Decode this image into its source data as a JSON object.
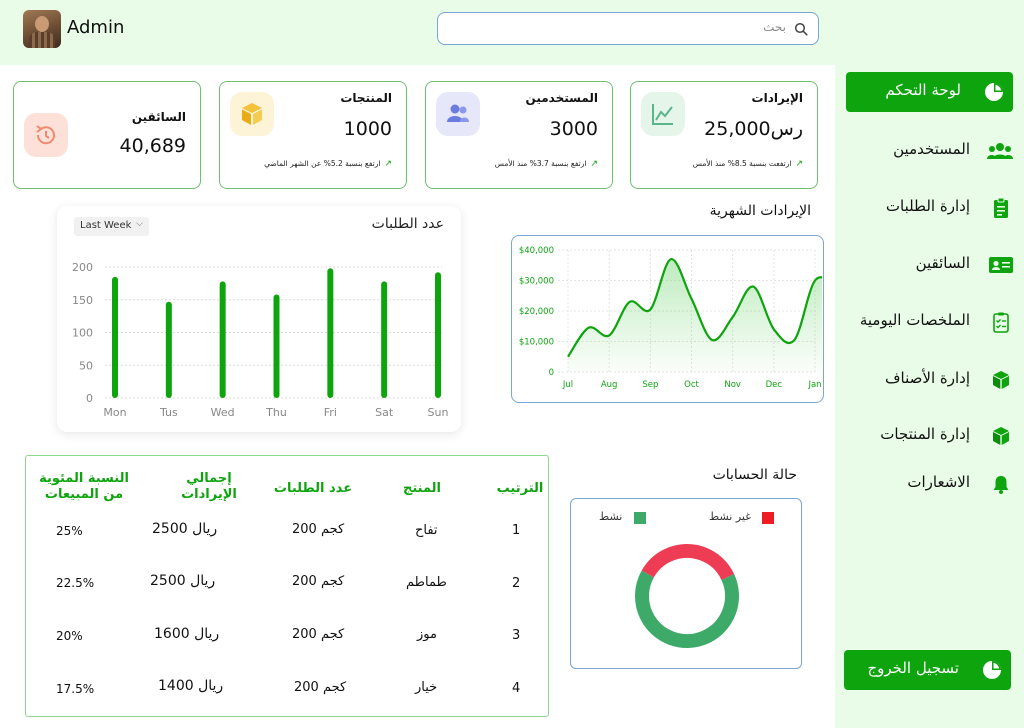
{
  "header": {
    "admin_name": "Admin",
    "search_placeholder": "بحث"
  },
  "sidebar": {
    "active": "لوحة التحكم",
    "items": [
      {
        "label": "المستخدمين",
        "icon": "users-icon"
      },
      {
        "label": "إدارة الطلبات",
        "icon": "clipboard-icon"
      },
      {
        "label": "السائقين",
        "icon": "id-card-icon"
      },
      {
        "label": "الملخصات اليومية",
        "icon": "checklist-icon"
      },
      {
        "label": "إدارة الأصناف",
        "icon": "box-icon"
      },
      {
        "label": "إدارة المنتجات",
        "icon": "box-icon"
      },
      {
        "label": "الاشعارات",
        "icon": "bell-icon"
      }
    ],
    "logout": "تسجيل الخروج"
  },
  "cards": {
    "revenue": {
      "title": "الإيرادات",
      "value": "25,000رس",
      "trend": "ارتفعت بنسبة 8.5% منذ الأمس",
      "icon": "chart-icon"
    },
    "users": {
      "title": "المستخدمين",
      "value": "3000",
      "trend": "ارتفع بنسبة 3.7% منذ الأمس",
      "icon": "users-icon"
    },
    "products": {
      "title": "المنتجات",
      "value": "1000",
      "trend": "ارتفع بنسبة 5.2% عن الشهر الماضي",
      "icon": "cube-icon"
    },
    "drivers": {
      "title": "السائقين",
      "value": "40,689",
      "icon": "history-icon"
    }
  },
  "orders_chart_panel": {
    "title": "عدد الطلبات",
    "period": "Last Week"
  },
  "revenue_chart_panel": {
    "title": "الإيرادات الشهرية"
  },
  "chart_data": [
    {
      "type": "bar",
      "title": "عدد الطلبات",
      "categories": [
        "Mon",
        "Tus",
        "Wed",
        "Thu",
        "Fri",
        "Sat",
        "Sun"
      ],
      "values": [
        185,
        147,
        178,
        158,
        198,
        178,
        192
      ],
      "ylim": [
        0,
        200
      ],
      "yticks": [
        0,
        50,
        100,
        150,
        200
      ],
      "color": "#0ea40e",
      "grid": true
    },
    {
      "type": "area",
      "title": "الإيرادات الشهرية",
      "categories": [
        "Jul",
        "Aug",
        "Sep",
        "Oct",
        "Nov",
        "Dec",
        "Jan"
      ],
      "x": [
        0,
        0.5,
        1,
        1.5,
        2,
        2.5,
        3,
        3.5,
        4,
        4.5,
        5,
        5.5,
        6,
        6.5
      ],
      "values": [
        5000,
        14500,
        12000,
        23000,
        20500,
        37000,
        24000,
        10500,
        18000,
        28000,
        14000,
        10500,
        30000,
        28500
      ],
      "ylim": [
        0,
        40000
      ],
      "yticks": [
        "0",
        "$10,000",
        "$20,000",
        "$30,000",
        "$40,000"
      ],
      "color": "#0ea40e",
      "grid": true
    },
    {
      "type": "pie",
      "title": "حالة الحسابات",
      "labels": [
        "نشط",
        "غير نشط"
      ],
      "values": [
        65,
        35
      ],
      "colors": [
        "#3daa6a",
        "#ee3c54"
      ],
      "donut": true
    }
  ],
  "table": {
    "headers": [
      "الترتيب",
      "المنتج",
      "عدد الطلبات",
      "إجمالي الإيرادات",
      "النسبة المئوية من المبيعات"
    ],
    "rows": [
      {
        "rank": "1",
        "product": "تفاح",
        "orders": "200 كجم",
        "revenue": "2500 ريال",
        "percent": "25%"
      },
      {
        "rank": "2",
        "product": "طماطم",
        "orders": "200 كجم",
        "revenue": "2500 ريال",
        "percent": "22.5%"
      },
      {
        "rank": "3",
        "product": "موز",
        "orders": "200 كجم",
        "revenue": "1600 ريال",
        "percent": "20%"
      },
      {
        "rank": "4",
        "product": "خيار",
        "orders": "200 كجم",
        "revenue": "1400 ريال",
        "percent": "17.5%"
      }
    ]
  },
  "accounts": {
    "title": "حالة الحسابات",
    "legend_active": "نشط",
    "legend_inactive": "غير نشط"
  }
}
